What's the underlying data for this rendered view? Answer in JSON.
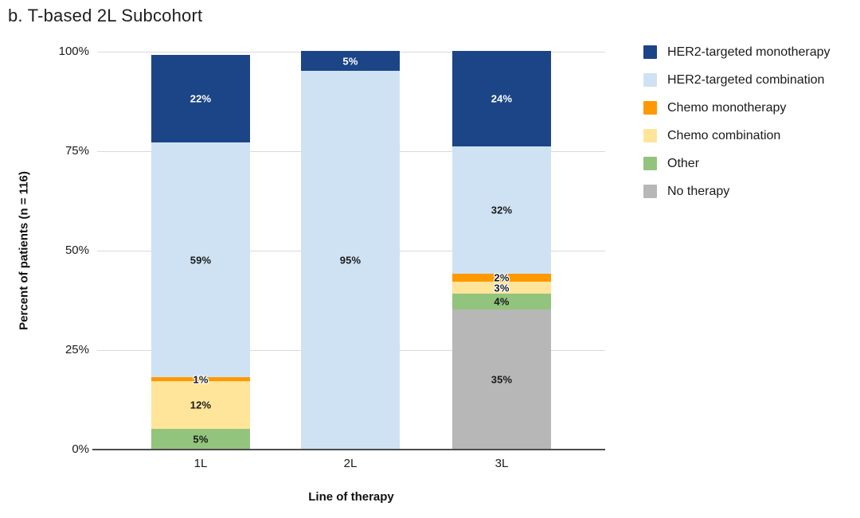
{
  "title": "b. T-based 2L Subcohort",
  "chart_data": {
    "type": "bar",
    "stacked": true,
    "title": "b. T-based 2L Subcohort",
    "xlabel": "Line of therapy",
    "ylabel": "Percent of patients (n = 116)",
    "categories": [
      "1L",
      "2L",
      "3L"
    ],
    "series": [
      {
        "name": "HER2-targeted monotherapy",
        "color": "#1c4587",
        "label_color": "#ffffff",
        "values": [
          22,
          5,
          24
        ]
      },
      {
        "name": "HER2-targeted combination",
        "color": "#cfe2f3",
        "label_color": "#1a1a1a",
        "values": [
          59,
          95,
          32
        ]
      },
      {
        "name": "Chemo monotherapy",
        "color": "#ff9900",
        "label_color": "#1a1a1a",
        "values": [
          1,
          0,
          2
        ]
      },
      {
        "name": "Chemo combination",
        "color": "#ffe599",
        "label_color": "#1a1a1a",
        "values": [
          12,
          0,
          3
        ]
      },
      {
        "name": "Other",
        "color": "#93c47d",
        "label_color": "#1a1a1a",
        "values": [
          5,
          0,
          4
        ]
      },
      {
        "name": "No therapy",
        "color": "#b7b7b7",
        "label_color": "#1a1a1a",
        "values": [
          0,
          0,
          35
        ]
      }
    ],
    "y_ticks": [
      "0%",
      "25%",
      "50%",
      "75%",
      "100%"
    ],
    "ylim": [
      0,
      100
    ],
    "grid": true,
    "legend_position": "top-right",
    "label_suffix": "%"
  }
}
